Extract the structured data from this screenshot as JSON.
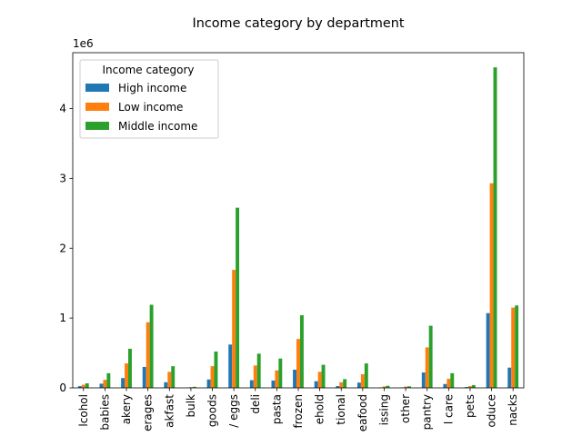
{
  "chart_data": {
    "type": "bar",
    "title": "Income category by department",
    "xlabel": "",
    "ylabel": "",
    "y_scale_label": "1e6",
    "ylim": [
      0,
      4800000
    ],
    "yticks": [
      0,
      1,
      2,
      3,
      4
    ],
    "yticks_scale": 1000000,
    "grid": false,
    "legend": {
      "title": "Income category",
      "placement": "top-left"
    },
    "categories": [
      "lcohol",
      "babies",
      "akery",
      "erages",
      "akfast",
      "bulk",
      "goods",
      "/ eggs",
      "deli",
      "pasta",
      "frozen",
      "ehold",
      "tional",
      "eafood",
      "issing",
      "other",
      "pantry",
      "l care",
      "pets",
      "oduce",
      "nacks"
    ],
    "series": [
      {
        "name": "High income",
        "color": "#1f77b4",
        "values": [
          25000,
          60000,
          140000,
          300000,
          80000,
          3000,
          120000,
          620000,
          110000,
          105000,
          260000,
          95000,
          25000,
          75000,
          6000,
          6000,
          220000,
          55000,
          12000,
          1070000,
          290000
        ]
      },
      {
        "name": "Low income",
        "color": "#ff7f0e",
        "values": [
          45000,
          115000,
          350000,
          940000,
          230000,
          10000,
          310000,
          1690000,
          320000,
          250000,
          700000,
          230000,
          80000,
          195000,
          20000,
          18000,
          580000,
          130000,
          25000,
          2930000,
          1150000
        ]
      },
      {
        "name": "Middle income",
        "color": "#2ca02c",
        "values": [
          65000,
          210000,
          560000,
          1190000,
          310000,
          15000,
          520000,
          2580000,
          490000,
          420000,
          1040000,
          330000,
          125000,
          350000,
          30000,
          22000,
          890000,
          210000,
          40000,
          4590000,
          1180000
        ]
      }
    ]
  }
}
